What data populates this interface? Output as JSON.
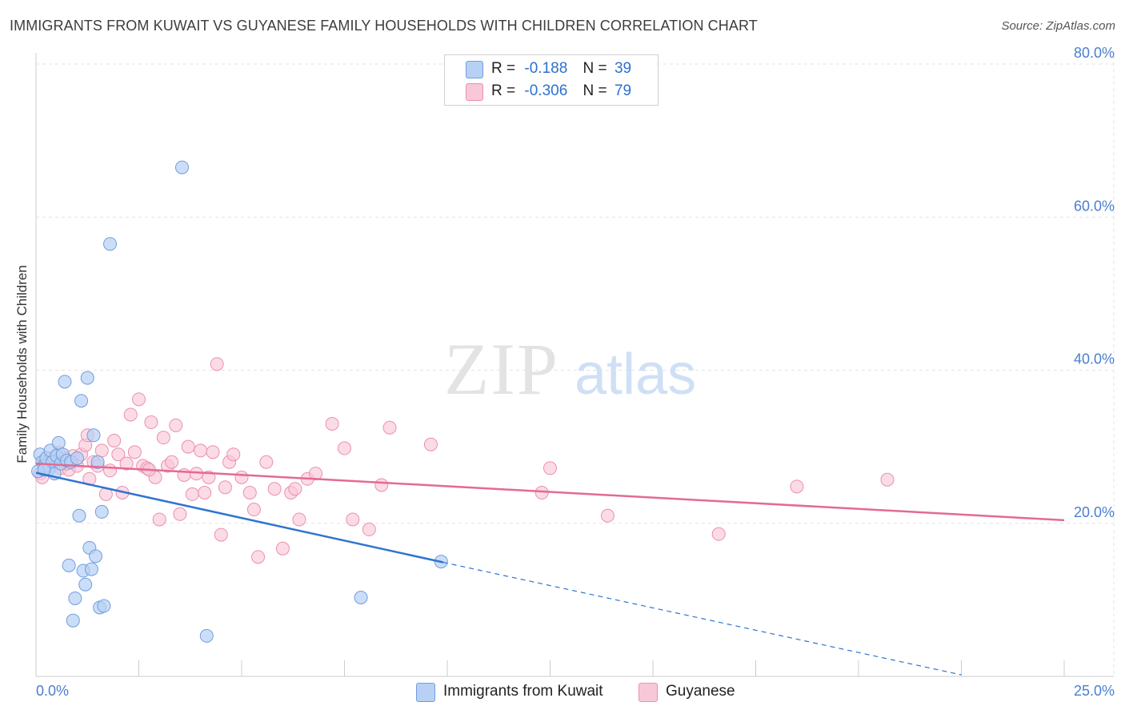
{
  "title": "IMMIGRANTS FROM KUWAIT VS GUYANESE FAMILY HOUSEHOLDS WITH CHILDREN CORRELATION CHART",
  "source": "Source: ZipAtlas.com",
  "watermark": {
    "zip": "ZIP",
    "atlas": "atlas"
  },
  "colors": {
    "blue_fill": "#b7d0f3",
    "blue_stroke": "#6f9ee0",
    "blue_line": "#2f74d0",
    "pink_fill": "#f9c8d8",
    "pink_stroke": "#ec8fae",
    "pink_line": "#e46a92",
    "axis_text": "#4a7fcf",
    "grid": "#e3e3e3"
  },
  "legend": {
    "rows": [
      {
        "r_label": "R =",
        "r_value": "-0.188",
        "n_label": "N =",
        "n_value": "39"
      },
      {
        "r_label": "R =",
        "r_value": "-0.306",
        "n_label": "N =",
        "n_value": "79"
      }
    ]
  },
  "bottom_legend": {
    "series1": "Immigrants from Kuwait",
    "series2": "Guyanese"
  },
  "chart_data": {
    "type": "scatter",
    "title": "IMMIGRANTS FROM KUWAIT VS GUYANESE FAMILY HOUSEHOLDS WITH CHILDREN CORRELATION CHART",
    "xlabel": "",
    "ylabel": "Family Households with Children",
    "xlim": [
      0,
      25
    ],
    "ylim": [
      0,
      80
    ],
    "x_tick_labels": [
      "0.0%",
      "25.0%"
    ],
    "y_ticks": [
      20,
      40,
      60,
      80
    ],
    "y_tick_labels": [
      "20.0%",
      "40.0%",
      "60.0%",
      "80.0%"
    ],
    "grid": true,
    "series": [
      {
        "name": "Immigrants from Kuwait",
        "r": -0.188,
        "n": 39,
        "points": [
          [
            0.1,
            29.0
          ],
          [
            0.15,
            28.0
          ],
          [
            0.2,
            27.5
          ],
          [
            0.25,
            28.5
          ],
          [
            0.3,
            27.0
          ],
          [
            0.35,
            29.5
          ],
          [
            0.4,
            28.0
          ],
          [
            0.45,
            26.5
          ],
          [
            0.5,
            28.8
          ],
          [
            0.55,
            30.5
          ],
          [
            0.6,
            27.8
          ],
          [
            0.65,
            29.0
          ],
          [
            0.7,
            38.5
          ],
          [
            0.75,
            28.2
          ],
          [
            0.8,
            14.5
          ],
          [
            0.85,
            28.0
          ],
          [
            0.9,
            7.3
          ],
          [
            0.95,
            10.2
          ],
          [
            1.0,
            28.5
          ],
          [
            1.05,
            21.0
          ],
          [
            1.1,
            36.0
          ],
          [
            1.15,
            13.8
          ],
          [
            1.2,
            12.0
          ],
          [
            1.25,
            39.0
          ],
          [
            1.3,
            16.8
          ],
          [
            1.35,
            14.0
          ],
          [
            1.4,
            31.5
          ],
          [
            1.45,
            15.7
          ],
          [
            1.5,
            28.0
          ],
          [
            1.55,
            9.0
          ],
          [
            1.6,
            21.5
          ],
          [
            1.65,
            9.2
          ],
          [
            1.8,
            56.5
          ],
          [
            3.55,
            66.5
          ],
          [
            4.15,
            5.3
          ],
          [
            7.9,
            10.3
          ],
          [
            9.85,
            15.0
          ],
          [
            0.05,
            26.8
          ],
          [
            0.2,
            27.0
          ]
        ],
        "trend_solid": [
          [
            0,
            26.6
          ],
          [
            9.9,
            14.9
          ]
        ],
        "trend_dashed": [
          [
            9.9,
            14.9
          ],
          [
            22.5,
            0.2
          ]
        ]
      },
      {
        "name": "Guyanese",
        "r": -0.306,
        "n": 79,
        "points": [
          [
            0.1,
            26.5
          ],
          [
            0.2,
            27.8
          ],
          [
            0.3,
            28.2
          ],
          [
            0.4,
            27.5
          ],
          [
            0.5,
            28.0
          ],
          [
            0.6,
            27.2
          ],
          [
            0.7,
            28.5
          ],
          [
            0.8,
            27.0
          ],
          [
            0.9,
            28.8
          ],
          [
            1.0,
            27.5
          ],
          [
            1.1,
            29.0
          ],
          [
            1.2,
            30.2
          ],
          [
            1.3,
            25.8
          ],
          [
            1.4,
            28.0
          ],
          [
            1.5,
            27.5
          ],
          [
            1.6,
            29.5
          ],
          [
            1.7,
            23.8
          ],
          [
            1.8,
            26.9
          ],
          [
            1.9,
            30.8
          ],
          [
            2.0,
            29.0
          ],
          [
            2.1,
            24.0
          ],
          [
            2.2,
            27.8
          ],
          [
            2.3,
            34.2
          ],
          [
            2.4,
            29.3
          ],
          [
            2.5,
            36.2
          ],
          [
            2.6,
            27.5
          ],
          [
            2.7,
            27.2
          ],
          [
            2.8,
            33.2
          ],
          [
            2.9,
            26.0
          ],
          [
            3.0,
            20.5
          ],
          [
            3.1,
            31.2
          ],
          [
            3.2,
            27.5
          ],
          [
            3.3,
            28.0
          ],
          [
            3.4,
            32.8
          ],
          [
            3.5,
            21.2
          ],
          [
            3.6,
            26.3
          ],
          [
            3.7,
            30.0
          ],
          [
            3.8,
            23.8
          ],
          [
            3.9,
            26.5
          ],
          [
            4.0,
            29.5
          ],
          [
            4.1,
            24.0
          ],
          [
            4.2,
            26.0
          ],
          [
            4.3,
            29.3
          ],
          [
            4.4,
            40.8
          ],
          [
            4.5,
            18.5
          ],
          [
            4.6,
            24.7
          ],
          [
            4.7,
            28.0
          ],
          [
            4.8,
            29.0
          ],
          [
            5.0,
            26.0
          ],
          [
            5.2,
            24.0
          ],
          [
            5.3,
            21.8
          ],
          [
            5.4,
            15.6
          ],
          [
            5.6,
            28.0
          ],
          [
            5.8,
            24.5
          ],
          [
            6.0,
            16.7
          ],
          [
            6.2,
            24.0
          ],
          [
            6.3,
            24.5
          ],
          [
            6.4,
            20.5
          ],
          [
            6.6,
            25.8
          ],
          [
            6.8,
            26.5
          ],
          [
            7.2,
            33.0
          ],
          [
            7.5,
            29.8
          ],
          [
            7.7,
            20.5
          ],
          [
            8.1,
            19.2
          ],
          [
            8.4,
            25.0
          ],
          [
            8.6,
            32.5
          ],
          [
            9.6,
            30.3
          ],
          [
            12.3,
            24.0
          ],
          [
            12.5,
            27.2
          ],
          [
            13.9,
            21.0
          ],
          [
            16.6,
            18.6
          ],
          [
            18.5,
            24.8
          ],
          [
            20.7,
            25.7
          ],
          [
            0.15,
            26.0
          ],
          [
            0.35,
            28.5
          ],
          [
            0.55,
            29.2
          ],
          [
            0.75,
            27.8
          ],
          [
            1.25,
            31.5
          ],
          [
            2.75,
            27.0
          ]
        ],
        "trend_solid": [
          [
            0,
            27.8
          ],
          [
            25,
            20.4
          ]
        ]
      }
    ]
  }
}
